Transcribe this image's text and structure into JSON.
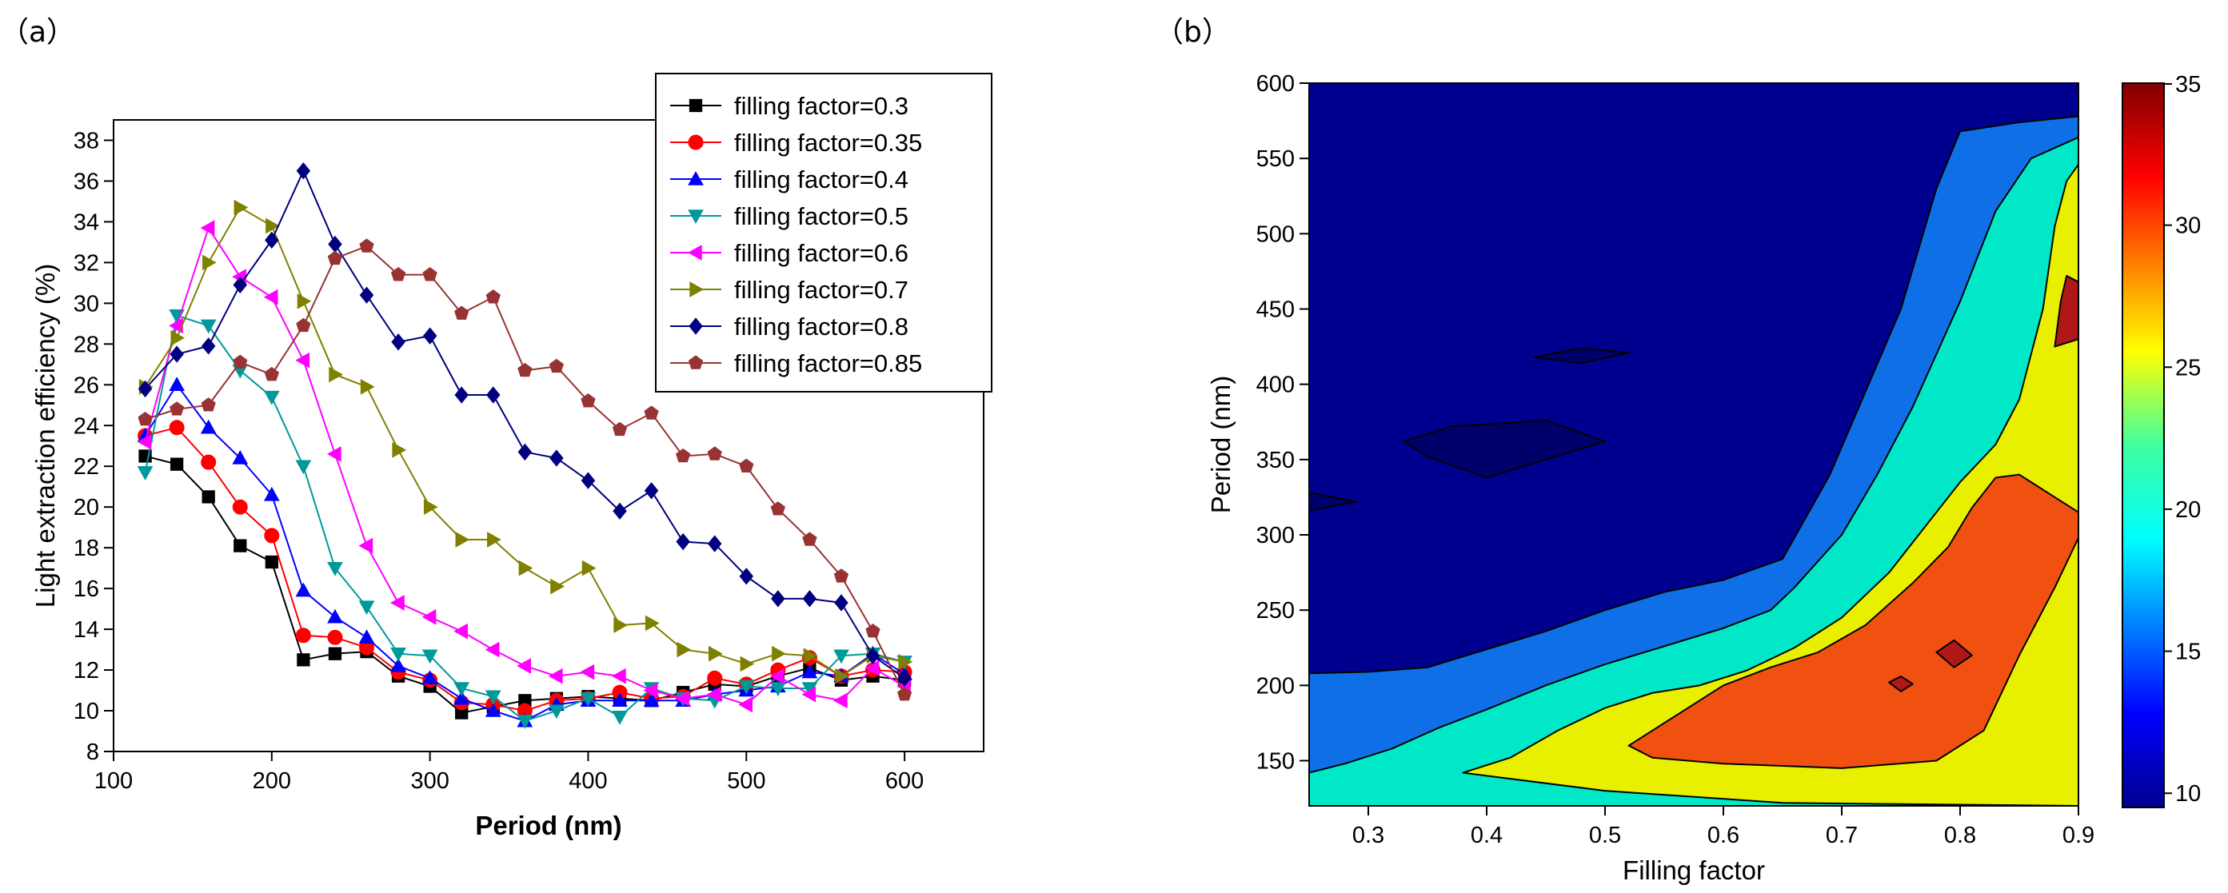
{
  "panels": {
    "a": "（a）",
    "b": "（b）"
  },
  "chart_data": [
    {
      "type": "line",
      "panel": "(a)",
      "xlabel": "Period (nm)",
      "ylabel": "Light extraction efficiency (%)",
      "xlim": [
        100,
        650
      ],
      "ylim": [
        8,
        39
      ],
      "xticks": [
        100,
        200,
        300,
        400,
        500,
        600
      ],
      "yticks": [
        8,
        10,
        12,
        14,
        16,
        18,
        20,
        22,
        24,
        26,
        28,
        30,
        32,
        34,
        36,
        38
      ],
      "x": [
        120,
        140,
        160,
        180,
        200,
        220,
        240,
        260,
        280,
        300,
        320,
        340,
        360,
        380,
        400,
        420,
        440,
        460,
        480,
        500,
        520,
        540,
        560,
        580,
        600
      ],
      "legend_position": "top-right",
      "series": [
        {
          "name": "filling factor=0.3",
          "color": "#000000",
          "marker": "square",
          "values": [
            22.5,
            22.1,
            20.5,
            18.1,
            17.3,
            12.5,
            12.8,
            12.9,
            11.7,
            11.2,
            9.9,
            10.2,
            10.5,
            10.6,
            10.7,
            10.6,
            10.5,
            10.9,
            11.3,
            11.2,
            11.7,
            12.1,
            11.5,
            11.7,
            11.5
          ]
        },
        {
          "name": "filling factor=0.35",
          "color": "#ff0000",
          "marker": "circle",
          "values": [
            23.5,
            23.9,
            22.2,
            20.0,
            18.6,
            13.7,
            13.6,
            13.1,
            11.9,
            11.5,
            10.4,
            10.3,
            10.0,
            10.5,
            10.6,
            10.9,
            10.6,
            10.7,
            11.6,
            11.3,
            12.0,
            12.6,
            11.7,
            12.0,
            11.9
          ]
        },
        {
          "name": "filling factor=0.4",
          "color": "#0000ff",
          "marker": "triangle-up",
          "values": [
            23.5,
            26.0,
            23.9,
            22.4,
            20.6,
            15.9,
            14.6,
            13.6,
            12.2,
            11.6,
            10.6,
            10.0,
            9.5,
            10.3,
            10.5,
            10.5,
            10.5,
            10.5,
            10.8,
            11.0,
            11.2,
            11.9,
            11.7,
            12.8,
            11.8
          ]
        },
        {
          "name": "filling factor=0.5",
          "color": "#009999",
          "marker": "triangle-down",
          "values": [
            21.7,
            29.4,
            28.9,
            26.7,
            25.4,
            22.0,
            17.0,
            15.1,
            12.8,
            12.7,
            11.1,
            10.7,
            9.5,
            10.0,
            10.6,
            9.7,
            11.1,
            10.6,
            10.5,
            11.2,
            11.1,
            11.1,
            12.7,
            12.8,
            12.4
          ]
        },
        {
          "name": "filling factor=0.6",
          "color": "#ff00ff",
          "marker": "triangle-left",
          "values": [
            23.2,
            28.9,
            33.7,
            31.3,
            30.3,
            27.2,
            22.6,
            18.1,
            15.3,
            14.6,
            13.9,
            13.0,
            12.2,
            11.7,
            11.9,
            11.7,
            11.0,
            10.6,
            10.8,
            10.3,
            11.7,
            10.8,
            10.5,
            12.1,
            11.2
          ]
        },
        {
          "name": "filling factor=0.7",
          "color": "#808000",
          "marker": "triangle-right",
          "values": [
            25.9,
            28.3,
            32.0,
            34.7,
            33.8,
            30.1,
            26.5,
            25.9,
            22.8,
            20.0,
            18.4,
            18.4,
            17.0,
            16.1,
            17.0,
            14.2,
            14.3,
            13.0,
            12.8,
            12.3,
            12.8,
            12.7,
            11.7,
            12.7,
            12.4
          ]
        },
        {
          "name": "filling factor=0.8",
          "color": "#000080",
          "marker": "diamond",
          "values": [
            25.8,
            27.5,
            27.9,
            30.9,
            33.1,
            36.5,
            32.9,
            30.4,
            28.1,
            28.4,
            25.5,
            25.5,
            22.7,
            22.4,
            21.3,
            19.8,
            20.8,
            18.3,
            18.2,
            16.6,
            15.5,
            15.5,
            15.3,
            12.7,
            11.6
          ]
        },
        {
          "name": "filling factor=0.85",
          "color": "#993333",
          "marker": "pentagon",
          "values": [
            24.3,
            24.8,
            25.0,
            27.1,
            26.5,
            28.9,
            32.2,
            32.8,
            31.4,
            31.4,
            29.5,
            30.3,
            26.7,
            26.9,
            25.2,
            23.8,
            24.6,
            22.5,
            22.6,
            22.0,
            19.9,
            18.4,
            16.6,
            13.9,
            10.8
          ]
        }
      ]
    },
    {
      "type": "heatmap",
      "panel": "(b)",
      "subtype": "filled-contour",
      "xlabel": "Filling factor",
      "ylabel": "Period (nm)",
      "xlim": [
        0.25,
        0.9
      ],
      "ylim": [
        120,
        600
      ],
      "xticks": [
        0.3,
        0.4,
        0.5,
        0.6,
        0.7,
        0.8,
        0.9
      ],
      "yticks": [
        150,
        200,
        250,
        300,
        350,
        400,
        450,
        500,
        550,
        600
      ],
      "colorbar": {
        "min": 9.5,
        "max": 35,
        "ticks": [
          10,
          15,
          20,
          25,
          30,
          35
        ]
      },
      "contour_levels": [
        {
          "name": "below-13",
          "value": 10,
          "color": "#00008f",
          "boundary": [
            [
              0.25,
              600
            ],
            [
              0.9,
              600
            ],
            [
              0.9,
              120
            ],
            [
              0.25,
              120
            ]
          ]
        },
        {
          "name": "13-17",
          "value": 15,
          "color": "#0f6fe6",
          "boundary": [
            [
              0.25,
              208
            ],
            [
              0.3,
              209
            ],
            [
              0.35,
              212
            ],
            [
              0.4,
              224
            ],
            [
              0.45,
              236
            ],
            [
              0.5,
              250
            ],
            [
              0.55,
              262
            ],
            [
              0.6,
              270
            ],
            [
              0.65,
              284
            ],
            [
              0.69,
              340
            ],
            [
              0.72,
              395
            ],
            [
              0.75,
              450
            ],
            [
              0.78,
              530
            ],
            [
              0.8,
              568
            ],
            [
              0.85,
              574
            ],
            [
              0.9,
              578
            ],
            [
              0.9,
              120
            ],
            [
              0.25,
              120
            ]
          ]
        },
        {
          "name": "17-21",
          "value": 20,
          "color": "#00e8c8",
          "boundary": [
            [
              0.25,
              142
            ],
            [
              0.28,
              148
            ],
            [
              0.32,
              158
            ],
            [
              0.36,
              172
            ],
            [
              0.4,
              184
            ],
            [
              0.45,
              200
            ],
            [
              0.5,
              214
            ],
            [
              0.55,
              226
            ],
            [
              0.6,
              238
            ],
            [
              0.64,
              250
            ],
            [
              0.66,
              265
            ],
            [
              0.7,
              300
            ],
            [
              0.73,
              340
            ],
            [
              0.76,
              385
            ],
            [
              0.78,
              420
            ],
            [
              0.8,
              455
            ],
            [
              0.83,
              515
            ],
            [
              0.86,
              550
            ],
            [
              0.9,
              564
            ],
            [
              0.9,
              120
            ],
            [
              0.25,
              120
            ]
          ]
        },
        {
          "name": "21-26",
          "value": 25,
          "color": "#e8f000",
          "boundary": [
            [
              0.38,
              142
            ],
            [
              0.42,
              152
            ],
            [
              0.46,
              170
            ],
            [
              0.5,
              185
            ],
            [
              0.54,
              195
            ],
            [
              0.58,
              200
            ],
            [
              0.62,
              210
            ],
            [
              0.66,
              225
            ],
            [
              0.7,
              245
            ],
            [
              0.74,
              275
            ],
            [
              0.77,
              305
            ],
            [
              0.8,
              335
            ],
            [
              0.83,
              360
            ],
            [
              0.85,
              390
            ],
            [
              0.87,
              450
            ],
            [
              0.88,
              505
            ],
            [
              0.89,
              535
            ],
            [
              0.9,
              546
            ],
            [
              0.9,
              120
            ],
            [
              0.65,
              122
            ],
            [
              0.5,
              130
            ],
            [
              0.42,
              138
            ]
          ]
        },
        {
          "name": "26-31",
          "value": 30,
          "color": "#f05010",
          "boundary": [
            [
              0.52,
              160
            ],
            [
              0.56,
              180
            ],
            [
              0.6,
              200
            ],
            [
              0.64,
              212
            ],
            [
              0.68,
              222
            ],
            [
              0.72,
              240
            ],
            [
              0.76,
              268
            ],
            [
              0.79,
              292
            ],
            [
              0.81,
              318
            ],
            [
              0.83,
              338
            ],
            [
              0.85,
              340
            ],
            [
              0.88,
              325
            ],
            [
              0.9,
              315
            ],
            [
              0.9,
              298
            ],
            [
              0.88,
              265
            ],
            [
              0.85,
              220
            ],
            [
              0.82,
              170
            ],
            [
              0.78,
              150
            ],
            [
              0.7,
              145
            ],
            [
              0.6,
              148
            ],
            [
              0.54,
              152
            ]
          ]
        },
        {
          "name": "31-33",
          "value": 33,
          "color": "#b01818",
          "boundary": [
            [
              0.88,
              425
            ],
            [
              0.9,
              430
            ],
            [
              0.9,
              468
            ],
            [
              0.89,
              472
            ],
            [
              0.885,
              455
            ]
          ]
        },
        {
          "name": "31-33",
          "value": 33,
          "color": "#b01818",
          "boundary": [
            [
              0.78,
              222
            ],
            [
              0.795,
              230
            ],
            [
              0.81,
              220
            ],
            [
              0.795,
              212
            ]
          ]
        },
        {
          "name": "31-33",
          "value": 33,
          "color": "#b01818",
          "boundary": [
            [
              0.74,
              202
            ],
            [
              0.75,
              206
            ],
            [
              0.76,
              201
            ],
            [
              0.75,
              196
            ]
          ]
        },
        {
          "name": "below-10",
          "value": 9.5,
          "color": "#00006a",
          "boundary": [
            [
              0.33,
              362
            ],
            [
              0.37,
              372
            ],
            [
              0.45,
              376
            ],
            [
              0.5,
              362
            ],
            [
              0.45,
              350
            ],
            [
              0.4,
              338
            ],
            [
              0.35,
              352
            ]
          ]
        },
        {
          "name": "below-10",
          "value": 9.5,
          "color": "#00006a",
          "boundary": [
            [
              0.25,
              328
            ],
            [
              0.29,
              322
            ],
            [
              0.25,
              316
            ]
          ]
        },
        {
          "name": "below-10",
          "value": 9.5,
          "color": "#00006a",
          "boundary": [
            [
              0.44,
              418
            ],
            [
              0.48,
              424
            ],
            [
              0.52,
              421
            ],
            [
              0.48,
              414
            ]
          ]
        }
      ]
    }
  ]
}
